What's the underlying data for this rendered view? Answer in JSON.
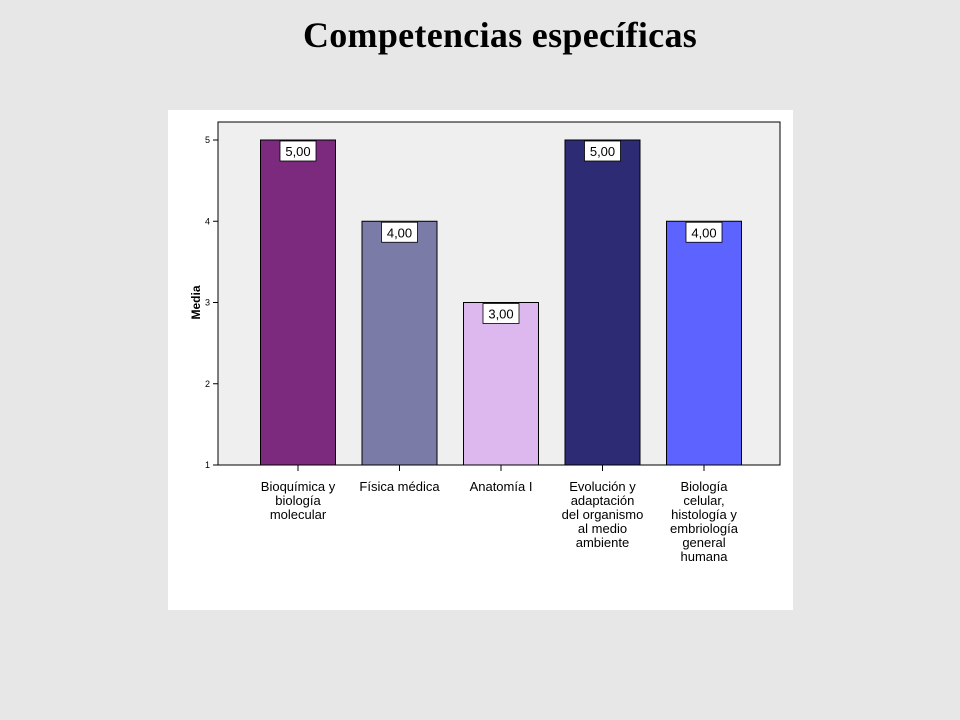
{
  "title": "Competencias específicas",
  "chart_data": {
    "type": "bar",
    "ylabel": "Media",
    "xlabel": "",
    "ylim": [
      1,
      5
    ],
    "yticks": [
      1,
      2,
      3,
      4,
      5
    ],
    "grid": false,
    "categories": [
      [
        "Bioquímica y",
        "biología",
        "molecular"
      ],
      [
        "Física médica"
      ],
      [
        "Anatomía I"
      ],
      [
        "Evolución y",
        "adaptación",
        "del organismo",
        "al medio",
        "ambiente"
      ],
      [
        "Biología",
        "celular,",
        "histología y",
        "embriología",
        "general",
        "humana"
      ]
    ],
    "values": [
      5,
      4,
      3,
      5,
      4
    ],
    "data_labels": [
      "5,00",
      "4,00",
      "3,00",
      "5,00",
      "4,00"
    ],
    "colors": [
      "#7b2a7d",
      "#7b7ba8",
      "#ddb8ee",
      "#2d2b73",
      "#5c63ff"
    ]
  }
}
